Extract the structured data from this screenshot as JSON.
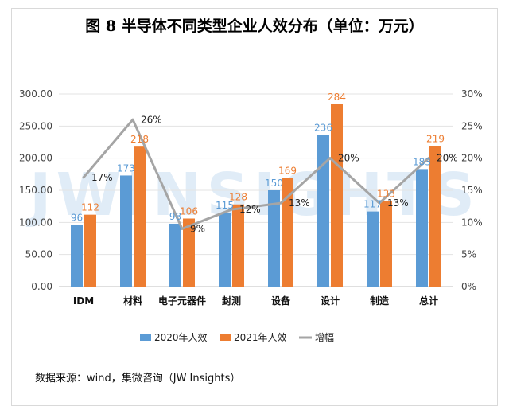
{
  "title": "图 8  半导体不同类型企业人效分布（单位：万元）",
  "source": "数据来源：wind，集微咨询（JW Insights）",
  "watermark": "JWINSIGHTS",
  "colors": {
    "s2020": "#5b9bd5",
    "s2021": "#ed7d31",
    "growth": "#a5a5a5"
  },
  "chart_data": {
    "type": "bar",
    "categories": [
      "IDM",
      "材料",
      "电子元器件",
      "封测",
      "设备",
      "设计",
      "制造",
      "总计"
    ],
    "series": [
      {
        "name": "2020年人效",
        "values": [
          96,
          173,
          98,
          115,
          150,
          236,
          117,
          183
        ],
        "labels": [
          "96",
          "173",
          "98",
          "115",
          "150",
          "236",
          "117",
          "183"
        ]
      },
      {
        "name": "2021年人效",
        "values": [
          112,
          218,
          106,
          128,
          169,
          284,
          133,
          219
        ],
        "labels": [
          "112",
          "218",
          "106",
          "128",
          "169",
          "284",
          "133",
          "219"
        ]
      }
    ],
    "line_series": {
      "name": "增幅",
      "values": [
        17,
        26,
        9,
        12,
        13,
        20,
        13,
        20
      ],
      "labels": [
        "17%",
        "26%",
        "9%",
        "12%",
        "13%",
        "20%",
        "13%",
        "20%"
      ]
    },
    "left_axis": {
      "ylim": [
        0,
        300
      ],
      "ticks": [
        "0.00",
        "50.00",
        "100.00",
        "150.00",
        "200.00",
        "250.00",
        "300.00"
      ]
    },
    "right_axis": {
      "ylim": [
        0,
        30
      ],
      "ticks": [
        "0%",
        "5%",
        "10%",
        "15%",
        "20%",
        "25%",
        "30%"
      ]
    },
    "legend_position": "bottom"
  }
}
